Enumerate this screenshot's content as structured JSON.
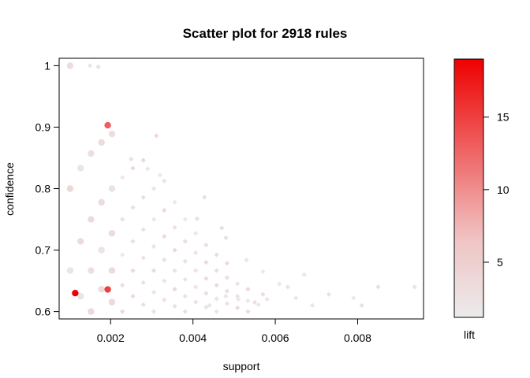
{
  "chart_data": {
    "type": "scatter",
    "title": "Scatter plot for 2918 rules",
    "xlabel": "support",
    "ylabel": "confidence",
    "xlim": [
      0.00075,
      0.0096
    ],
    "ylim": [
      0.588,
      1.012
    ],
    "x_ticks": [
      0.002,
      0.004,
      0.006,
      0.008
    ],
    "x_tick_labels": [
      "0.002",
      "0.004",
      "0.006",
      "0.008"
    ],
    "y_ticks": [
      0.6,
      0.7,
      0.8,
      0.9,
      1.0
    ],
    "y_tick_labels": [
      "0.6",
      "0.7",
      "0.8",
      "0.9",
      "1"
    ],
    "colorbar": {
      "label": "lift",
      "min": 1.2,
      "max": 19,
      "ticks": [
        5,
        10,
        15
      ],
      "tick_labels": [
        "5",
        "10",
        "15"
      ],
      "color_low": "#ebebeb",
      "color_high": "#ee0000"
    },
    "notable_points": [
      {
        "x": 0.00114,
        "y": 0.63,
        "lift": 19
      },
      {
        "x": 0.00193,
        "y": 0.903,
        "lift": 13
      },
      {
        "x": 0.00193,
        "y": 0.636,
        "lift": 15
      },
      {
        "x": 0.00311,
        "y": 0.886,
        "lift": 4
      },
      {
        "x": 0.00428,
        "y": 0.786,
        "lift": 3
      },
      {
        "x": 0.00938,
        "y": 0.64,
        "lift": 2.5
      }
    ],
    "grid": false,
    "legend": "right"
  }
}
